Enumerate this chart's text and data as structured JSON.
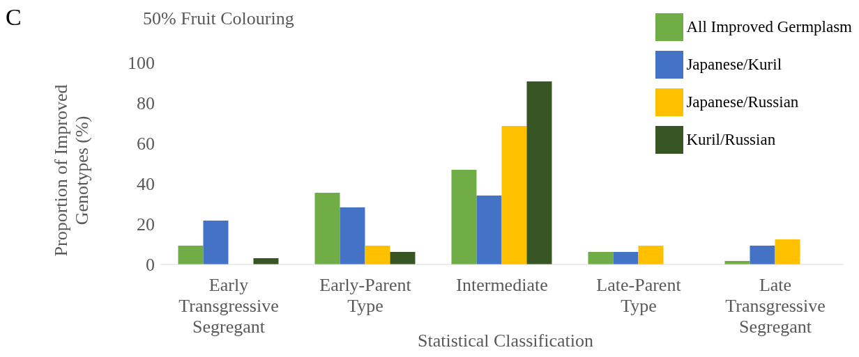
{
  "chart_data": {
    "type": "bar",
    "title": "50% Fruit Colouring",
    "annotations": [
      "C"
    ],
    "xlabel": "Statistical Classification",
    "ylabel": "Proportion of Improved Genotypes (%)",
    "categories": [
      "Early Transgressive Segregant",
      "Early-Parent Type",
      "Intermediate",
      "Late-Parent Type",
      "Late Transgressive Segregant"
    ],
    "series": [
      {
        "name": "All Improved Germplasm",
        "color": "#70ad47",
        "values": [
          9.3,
          35.5,
          46.9,
          6.2,
          1.7
        ]
      },
      {
        "name": "Japanese/Kuril",
        "color": "#4472c4",
        "values": [
          21.7,
          28.3,
          34.1,
          6.2,
          9.3
        ]
      },
      {
        "name": "Japanese/Russian",
        "color": "#ffc000",
        "values": [
          0,
          9.3,
          68.6,
          9.3,
          12.4
        ]
      },
      {
        "name": "Kuril/Russian",
        "color": "#375623",
        "values": [
          3.1,
          6.2,
          90.7,
          0,
          0
        ]
      }
    ],
    "ylim": [
      0,
      100
    ],
    "yticks": [
      0,
      20,
      40,
      60,
      80,
      100
    ],
    "legend": "top right"
  }
}
